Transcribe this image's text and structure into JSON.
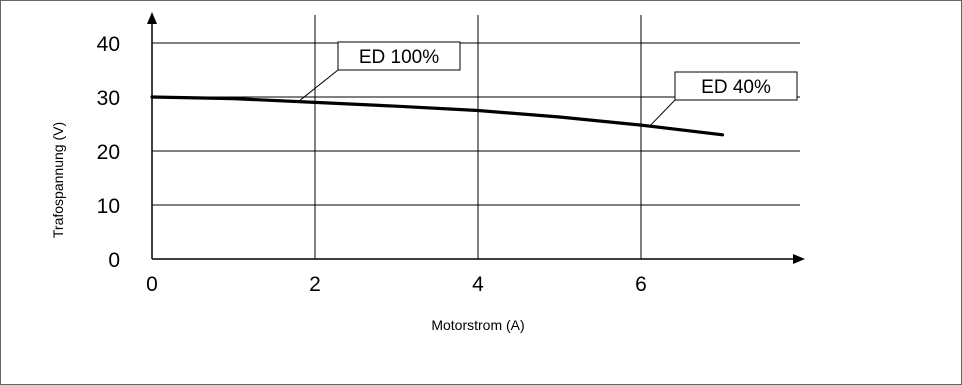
{
  "chart_data": {
    "type": "line",
    "xlabel": "Motorstrom (A)",
    "ylabel": "Trafospannung (V)",
    "xlim": [
      0,
      8
    ],
    "ylim": [
      0,
      40
    ],
    "x_ticks": [
      "0",
      "2",
      "4",
      "6"
    ],
    "y_ticks": [
      "0",
      "10",
      "20",
      "30",
      "40"
    ],
    "grid": true,
    "series": [
      {
        "x": [
          0,
          1,
          2,
          3,
          4,
          5,
          6,
          7
        ],
        "y": [
          30,
          29.7,
          29.0,
          28.3,
          27.5,
          26.3,
          24.8,
          23.0
        ]
      }
    ],
    "annotations": [
      {
        "text": "ED 100%",
        "x": 1.8,
        "y": 29.2
      },
      {
        "text": "ED 40%",
        "x": 6.1,
        "y": 24.5
      }
    ]
  }
}
